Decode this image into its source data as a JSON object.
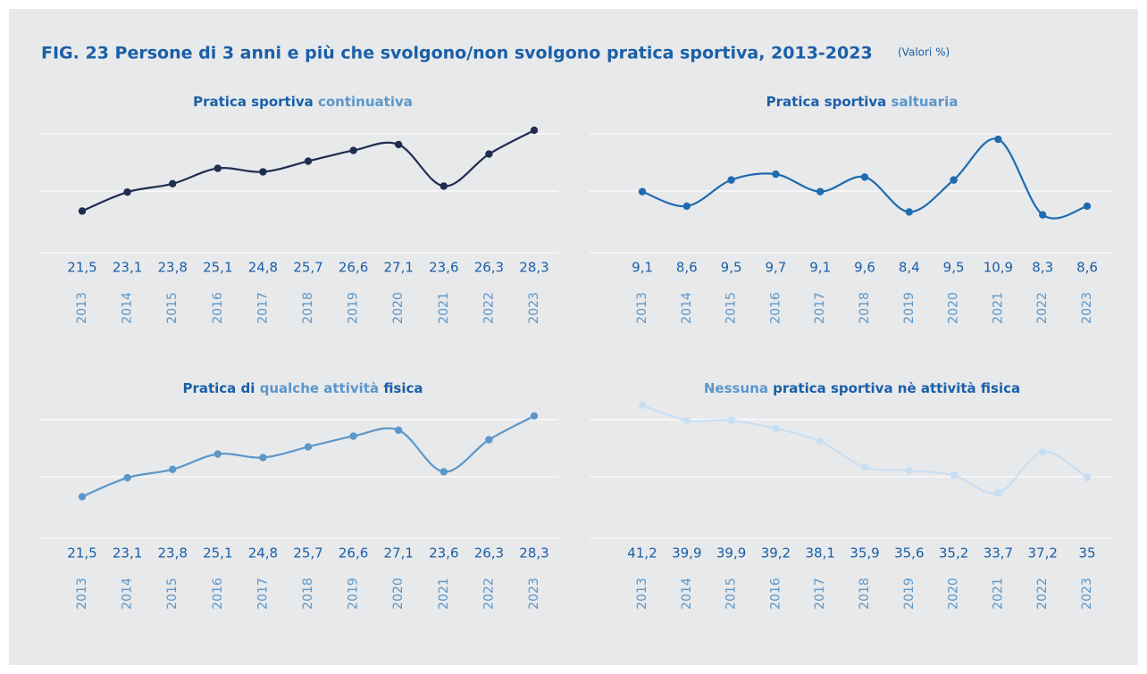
{
  "title": "FIG. 23  Persone di 3 anni e più che svolgono/non svolgono pratica sportiva, 2013-2023",
  "unit_note": "(Valori %)",
  "chart_data": [
    {
      "type": "line",
      "title_parts": [
        {
          "text": "Pratica sportiva ",
          "highlight": false
        },
        {
          "text": "continuativa",
          "highlight": true
        }
      ],
      "categories": [
        "2013",
        "2014",
        "2015",
        "2016",
        "2017",
        "2018",
        "2019",
        "2020",
        "2021",
        "2022",
        "2023"
      ],
      "values": [
        21.5,
        23.1,
        23.8,
        25.1,
        24.8,
        25.7,
        26.6,
        27.1,
        23.6,
        26.3,
        28.3
      ],
      "value_labels": [
        "21,5",
        "23,1",
        "23,8",
        "25,1",
        "24,8",
        "25,7",
        "26,6",
        "27,1",
        "23,6",
        "26,3",
        "28,3"
      ],
      "color": "#1f2d50",
      "ylim": [
        18,
        29.5
      ]
    },
    {
      "type": "line",
      "title_parts": [
        {
          "text": "Pratica sportiva ",
          "highlight": false
        },
        {
          "text": "saltuaria",
          "highlight": true
        }
      ],
      "categories": [
        "2013",
        "2014",
        "2015",
        "2016",
        "2017",
        "2018",
        "2019",
        "2020",
        "2021",
        "2022",
        "2023"
      ],
      "values": [
        9.1,
        8.6,
        9.5,
        9.7,
        9.1,
        9.6,
        8.4,
        9.5,
        10.9,
        8.3,
        8.6
      ],
      "value_labels": [
        "9,1",
        "8,6",
        "9,5",
        "9,7",
        "9,1",
        "9,6",
        "8,4",
        "9,5",
        "10,9",
        "8,3",
        "8,6"
      ],
      "color": "#1f6bb0",
      "ylim": [
        7,
        11.7
      ]
    },
    {
      "type": "line",
      "title_parts": [
        {
          "text": "Pratica di ",
          "highlight": false
        },
        {
          "text": "qualche attività",
          "highlight": true
        },
        {
          "text": " fisica",
          "highlight": false
        }
      ],
      "categories": [
        "2013",
        "2014",
        "2015",
        "2016",
        "2017",
        "2018",
        "2019",
        "2020",
        "2021",
        "2022",
        "2023"
      ],
      "values": [
        21.5,
        23.1,
        23.8,
        25.1,
        24.8,
        25.7,
        26.6,
        27.1,
        23.6,
        26.3,
        28.3
      ],
      "value_labels": [
        "21,5",
        "23,1",
        "23,8",
        "25,1",
        "24,8",
        "25,7",
        "26,6",
        "27,1",
        "23,6",
        "26,3",
        "28,3"
      ],
      "color": "#5b97c9",
      "ylim": [
        18,
        29.5
      ]
    },
    {
      "type": "line",
      "title_parts": [
        {
          "text": "Nessuna",
          "highlight": true
        },
        {
          "text": " pratica sportiva nè attività fisica",
          "highlight": false
        }
      ],
      "categories": [
        "2013",
        "2014",
        "2015",
        "2016",
        "2017",
        "2018",
        "2019",
        "2020",
        "2021",
        "2022",
        "2023"
      ],
      "values": [
        41.2,
        39.9,
        39.9,
        39.2,
        38.1,
        35.9,
        35.6,
        35.2,
        33.7,
        37.2,
        35
      ],
      "value_labels": [
        "41,2",
        "39,9",
        "39,9",
        "39,2",
        "38,1",
        "35,9",
        "35,6",
        "35,2",
        "33,7",
        "37,2",
        "35"
      ],
      "color": "#c8dff3",
      "ylim": [
        29.8,
        41.5
      ]
    }
  ]
}
